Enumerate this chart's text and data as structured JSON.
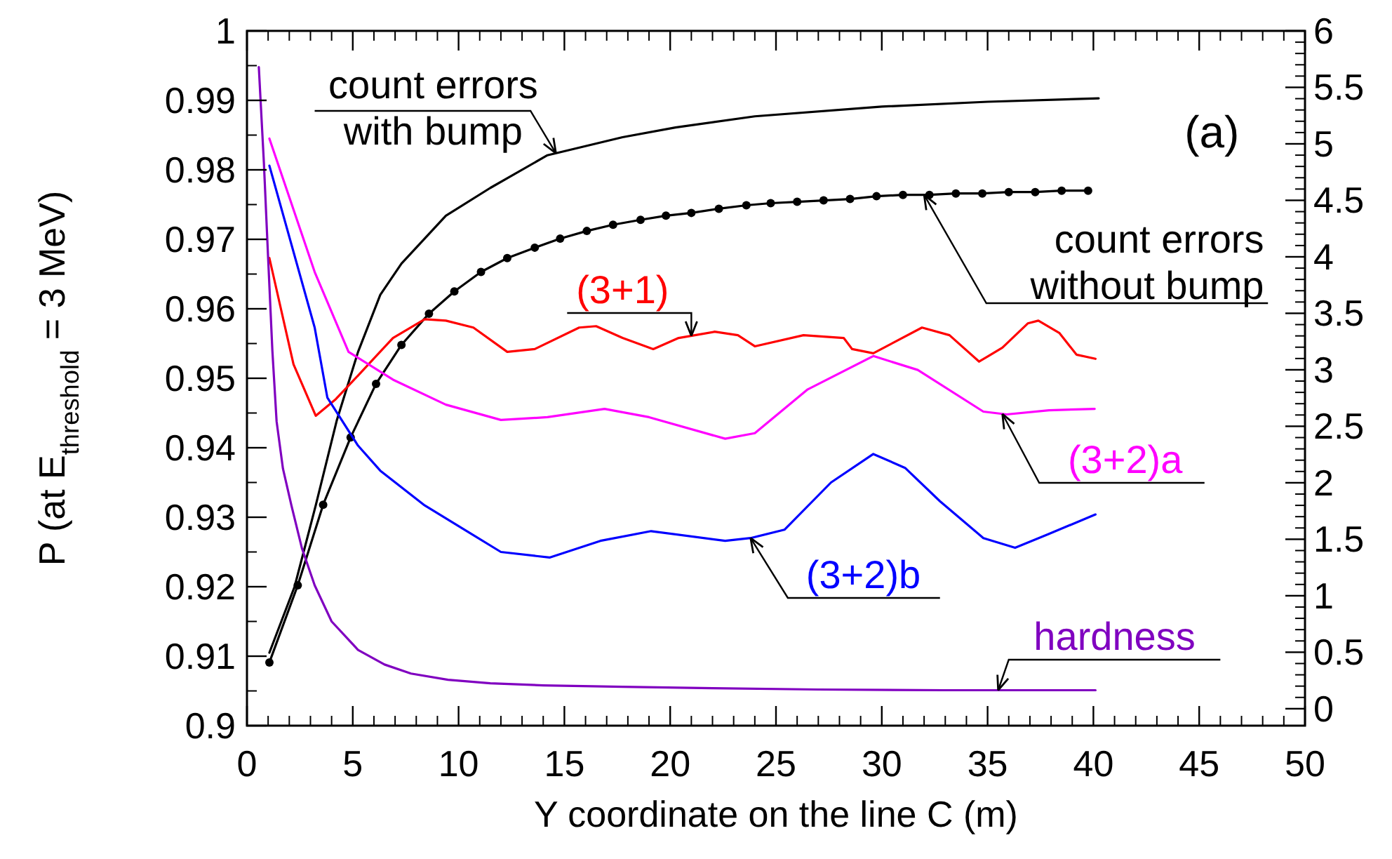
{
  "chart_data": {
    "type": "line",
    "xlabel": "Y coordinate on the line C  (m)",
    "ylabel": "P  (at  E$_{threshold}$ = 3 MeV)",
    "annotations": [
      "(a)"
    ],
    "xlim": [
      0,
      50
    ],
    "xticks": [
      0,
      5,
      10,
      15,
      20,
      25,
      30,
      35,
      40,
      45,
      50
    ],
    "ylim": [
      0.9,
      1
    ],
    "yticks": [
      0.9,
      0.91,
      0.92,
      0.93,
      0.94,
      0.95,
      0.96,
      0.97,
      0.98,
      0.99,
      1
    ],
    "y2lim": [
      -0.15,
      6
    ],
    "y2ticks": [
      0,
      0.5,
      1,
      1.5,
      2,
      2.5,
      3,
      3.5,
      4,
      4.5,
      5,
      5.5,
      6
    ],
    "grid": false,
    "legend": "top left",
    "marker": "none",
    "line_style": "solid",
    "series": [
      {
        "name": "count errors with bump",
        "color": "#000000",
        "x": [
          1.06,
          2.25,
          3.25,
          4.25,
          5.25,
          6.3,
          7.3,
          9.4,
          11.5,
          14.2,
          17.75,
          20.25,
          24,
          30,
          35,
          40.25
        ],
        "values": [
          0.9105,
          0.92,
          0.9317,
          0.944,
          0.9538,
          0.962,
          0.9665,
          0.9734,
          0.9774,
          0.9821,
          0.9847,
          0.9861,
          0.9877,
          0.9891,
          0.9898,
          0.9903
        ]
      },
      {
        "name": "count errors without bump",
        "color": "#000000",
        "marker": "circle",
        "x": [
          1.06,
          2.4,
          3.6,
          4.9,
          6.1,
          7.3,
          8.6,
          9.8,
          11.06,
          12.3,
          13.6,
          14.8,
          16.06,
          17.3,
          18.6,
          19.8,
          21,
          22.3,
          23.6,
          24.75,
          26,
          27.25,
          28.5,
          29.75,
          31,
          32.25,
          33.5,
          34.75,
          36,
          37.25,
          38.5,
          39.75
        ],
        "values": [
          0.9091,
          0.9202,
          0.9318,
          0.9415,
          0.9492,
          0.9548,
          0.9593,
          0.9625,
          0.9653,
          0.9673,
          0.9688,
          0.9701,
          0.9712,
          0.9721,
          0.9728,
          0.9734,
          0.9738,
          0.9744,
          0.9749,
          0.9752,
          0.9754,
          0.9756,
          0.9758,
          0.9762,
          0.9764,
          0.9764,
          0.9766,
          0.9766,
          0.9768,
          0.9768,
          0.977,
          0.977
        ]
      },
      {
        "name": "(3+1)",
        "color": "#ff0000",
        "x": [
          1.06,
          2.2,
          3.25,
          4.2,
          5.25,
          6.9,
          8.4,
          9.4,
          10.7,
          12.3,
          13.6,
          15.7,
          16.5,
          17.75,
          19.2,
          20.4,
          22.1,
          23.2,
          24,
          26.3,
          28.2,
          28.6,
          29.6,
          31.9,
          33.2,
          34.6,
          35.7,
          36.9,
          37.4,
          38.4,
          39.2,
          40.1
        ],
        "values": [
          0.9673,
          0.952,
          0.9446,
          0.947,
          0.9504,
          0.9558,
          0.9585,
          0.9583,
          0.9573,
          0.9538,
          0.9542,
          0.9573,
          0.9575,
          0.9558,
          0.9542,
          0.9558,
          0.9567,
          0.9562,
          0.9546,
          0.9562,
          0.9558,
          0.9542,
          0.9536,
          0.9573,
          0.9562,
          0.9524,
          0.9544,
          0.9579,
          0.9583,
          0.9565,
          0.9534,
          0.9528
        ]
      },
      {
        "name": "(3+2)a",
        "color": "#ff00ff",
        "x": [
          1.06,
          3.2,
          4.8,
          6.9,
          9.4,
          12,
          14.2,
          16.9,
          19,
          22.6,
          24,
          26.5,
          29.6,
          31.7,
          34.8,
          35.9,
          37.9,
          40.06
        ],
        "values": [
          0.9845,
          0.9653,
          0.9538,
          0.9498,
          0.9462,
          0.944,
          0.9444,
          0.9456,
          0.9444,
          0.9413,
          0.9421,
          0.9484,
          0.9532,
          0.9512,
          0.9452,
          0.9448,
          0.9454,
          0.9456
        ]
      },
      {
        "name": "(3+2)b",
        "color": "#0000ff",
        "x": [
          1.06,
          3.2,
          3.8,
          5.25,
          6.3,
          8.4,
          12,
          14.3,
          16.7,
          19.1,
          22.6,
          23.8,
          25.4,
          27.6,
          29.6,
          31.1,
          32.75,
          34.8,
          36.3,
          37.9,
          40.1
        ],
        "values": [
          0.9806,
          0.9573,
          0.9472,
          0.9403,
          0.9367,
          0.9317,
          0.925,
          0.9242,
          0.9266,
          0.928,
          0.9266,
          0.927,
          0.9282,
          0.935,
          0.9391,
          0.9371,
          0.9323,
          0.927,
          0.9256,
          0.9276,
          0.9304
        ]
      },
      {
        "name": "hardness",
        "color": "#8000c0",
        "x": [
          0.56,
          0.8,
          1,
          1.2,
          1.4,
          1.7,
          2.1,
          2.6,
          3.2,
          4,
          5.25,
          6.5,
          7.75,
          9.5,
          11.5,
          14,
          17.75,
          22,
          27,
          33,
          40.1
        ],
        "values": [
          0.9948,
          0.981,
          0.9673,
          0.954,
          0.9438,
          0.937,
          0.9317,
          0.9255,
          0.9202,
          0.915,
          0.9109,
          0.9088,
          0.9075,
          0.9066,
          0.9061,
          0.9058,
          0.9056,
          0.9054,
          0.9052,
          0.9051,
          0.9051
        ]
      }
    ]
  }
}
